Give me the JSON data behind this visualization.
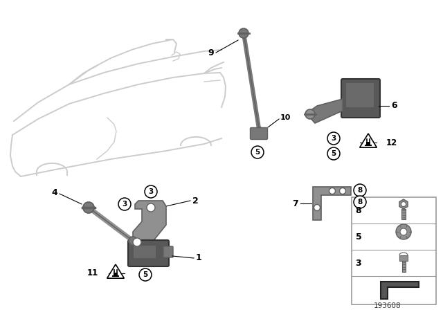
{
  "bg_color": "#ffffff",
  "fig_width": 6.4,
  "fig_height": 4.48,
  "dpi": 100,
  "diagram_id": "193608",
  "car_color": "#cccccc",
  "part_gray": "#909090",
  "part_dark": "#606060",
  "part_mid": "#787878",
  "line_color": "#000000",
  "legend_border": "#aaaaaa",
  "legend_items": [
    {
      "num": "8",
      "type": "hex_bolt"
    },
    {
      "num": "5",
      "type": "nut"
    },
    {
      "num": "3",
      "type": "torx_bolt"
    },
    {
      "num": "",
      "type": "bracket_profile"
    }
  ]
}
